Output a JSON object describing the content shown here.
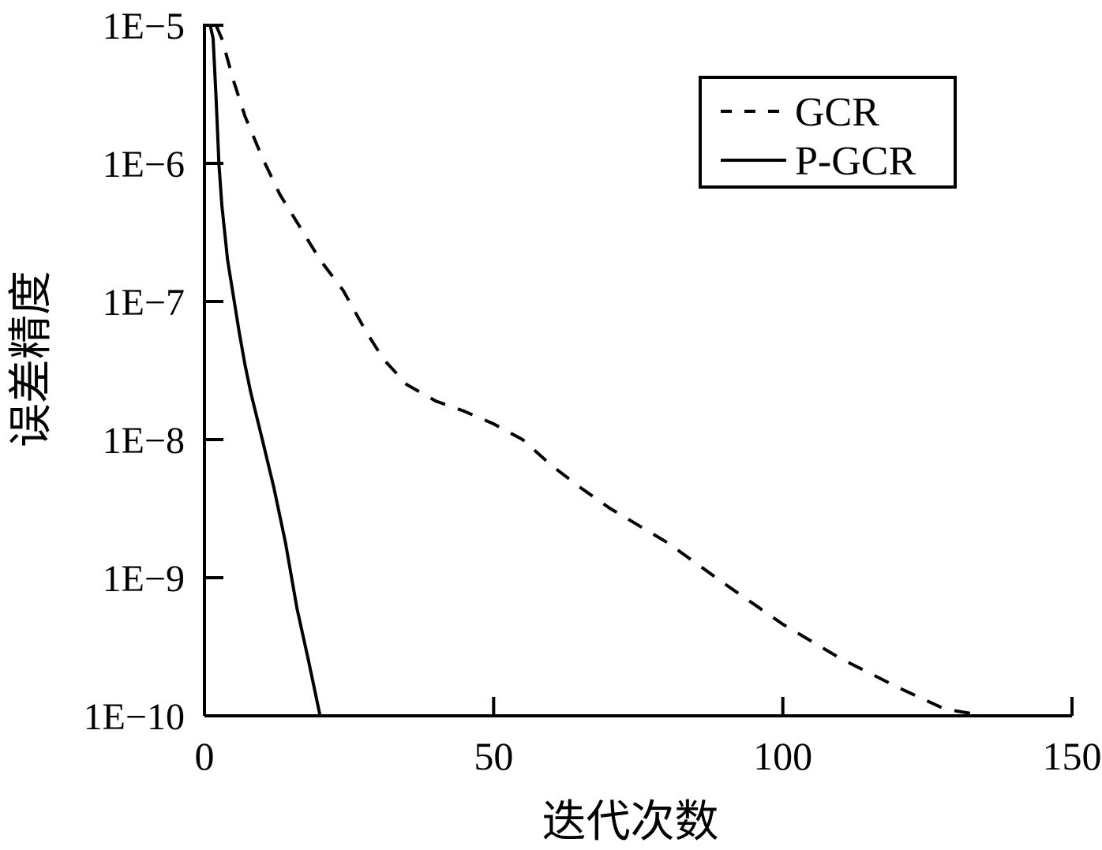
{
  "chart_data": {
    "type": "line",
    "xlabel": "迭代次数",
    "ylabel": "误差精度",
    "xlim": [
      0,
      150
    ],
    "ylim": [
      1e-10,
      1e-05
    ],
    "yscale": "log",
    "x_ticks": [
      0,
      50,
      100,
      150
    ],
    "x_tick_labels": [
      "0",
      "50",
      "100",
      "150"
    ],
    "y_ticks": [
      1e-05,
      1e-06,
      1e-07,
      1e-08,
      1e-09,
      1e-10
    ],
    "y_tick_labels": [
      "1E−5",
      "1E−6",
      "1E−7",
      "1E−8",
      "1E−9",
      "1E−10"
    ],
    "legend_position": "top-right",
    "grid": false,
    "series": [
      {
        "name": "GCR",
        "style": "dashed",
        "color": "#000000",
        "x": [
          2,
          3,
          5,
          7,
          10,
          13,
          17,
          20,
          24,
          28,
          31,
          35,
          40,
          45,
          50,
          55,
          60,
          65,
          70,
          80,
          90,
          100,
          110,
          120,
          128,
          135
        ],
        "y": [
          1e-05,
          8e-06,
          4e-06,
          2.2e-06,
          1.1e-06,
          6e-07,
          3.2e-07,
          2e-07,
          1.2e-07,
          6e-08,
          3.8e-08,
          2.5e-08,
          1.9e-08,
          1.6e-08,
          1.3e-08,
          1e-08,
          6.5e-09,
          4.5e-09,
          3.2e-09,
          1.8e-09,
          9e-10,
          4.6e-10,
          2.6e-10,
          1.6e-10,
          1.12e-10,
          1e-10
        ]
      },
      {
        "name": "P-GCR",
        "style": "solid",
        "color": "#000000",
        "x": [
          1,
          1.5,
          2,
          2.5,
          3,
          4,
          5,
          6,
          7,
          8,
          10,
          12,
          14,
          16,
          18,
          20
        ],
        "y": [
          1e-05,
          8e-06,
          3e-06,
          1e-06,
          5e-07,
          2e-07,
          1.1e-07,
          6e-08,
          3.5e-08,
          2.2e-08,
          1e-08,
          4.5e-09,
          1.8e-09,
          6e-10,
          2.5e-10,
          1e-10
        ]
      }
    ]
  }
}
